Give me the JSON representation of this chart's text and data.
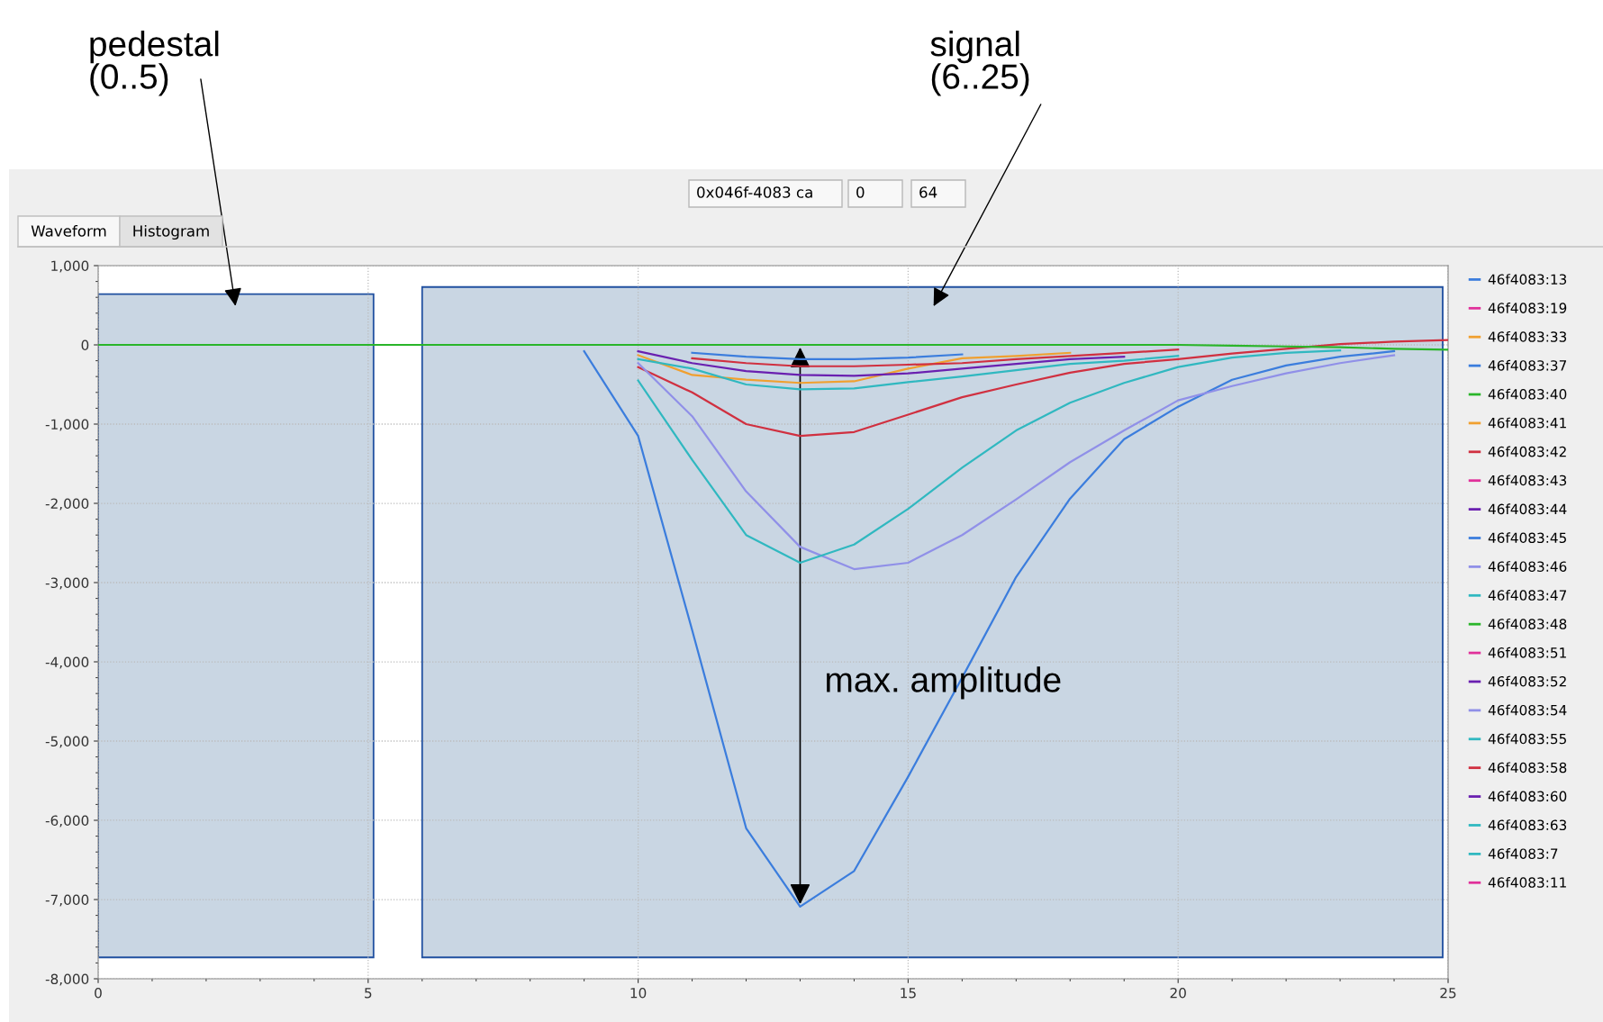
{
  "chart_data": {
    "type": "line",
    "x": [
      0,
      1,
      2,
      3,
      4,
      5,
      6,
      7,
      8,
      9,
      10,
      11,
      12,
      13,
      14,
      15,
      16,
      17,
      18,
      19,
      20,
      21,
      22,
      23,
      24,
      25
    ],
    "series": [
      {
        "name": "46f4083:13",
        "color": "#3b7ddd",
        "values": [
          null,
          null,
          null,
          null,
          null,
          null,
          null,
          null,
          null,
          null,
          null,
          null,
          null,
          null,
          null,
          null,
          null,
          null,
          null,
          null,
          null,
          null,
          null,
          null,
          null,
          null
        ]
      },
      {
        "name": "46f4083:19",
        "color": "#e0309a",
        "values": [
          null,
          null,
          null,
          null,
          null,
          null,
          null,
          null,
          null,
          null,
          null,
          null,
          null,
          null,
          null,
          null,
          null,
          null,
          null,
          null,
          null,
          null,
          null,
          null,
          null,
          null
        ]
      },
      {
        "name": "46f4083:33",
        "color": "#f0a030",
        "values": [
          null,
          null,
          null,
          null,
          null,
          null,
          null,
          null,
          null,
          null,
          null,
          null,
          null,
          null,
          null,
          null,
          null,
          null,
          null,
          null,
          null,
          null,
          null,
          null,
          null,
          null
        ]
      },
      {
        "name": "46f4083:37",
        "color": "#3b7ddd",
        "values": [
          null,
          null,
          null,
          null,
          null,
          null,
          null,
          null,
          null,
          null,
          null,
          -100,
          -150,
          -180,
          -180,
          -160,
          -120,
          null,
          null,
          null,
          null,
          null,
          null,
          null,
          null,
          null
        ]
      },
      {
        "name": "46f4083:40",
        "color": "#2ab52a",
        "values": [
          null,
          null,
          null,
          null,
          null,
          null,
          null,
          null,
          null,
          null,
          null,
          null,
          null,
          null,
          null,
          null,
          null,
          null,
          null,
          null,
          null,
          null,
          null,
          null,
          null,
          null
        ]
      },
      {
        "name": "46f4083:41",
        "color": "#f0a030",
        "values": [
          null,
          null,
          null,
          null,
          null,
          null,
          null,
          null,
          null,
          null,
          -130,
          -380,
          -440,
          -480,
          -460,
          -300,
          -170,
          -140,
          -100,
          null,
          null,
          null,
          null,
          null,
          null,
          null
        ]
      },
      {
        "name": "46f4083:42",
        "color": "#d03040",
        "values": [
          null,
          null,
          null,
          null,
          null,
          null,
          null,
          null,
          null,
          null,
          -280,
          -600,
          -1000,
          -1150,
          -1100,
          -880,
          -660,
          -500,
          -350,
          -240,
          -180,
          -110,
          -50,
          10,
          40,
          60
        ]
      },
      {
        "name": "46f4083:43",
        "color": "#e0309a",
        "values": [
          null,
          null,
          null,
          null,
          null,
          null,
          null,
          null,
          null,
          null,
          null,
          null,
          null,
          null,
          null,
          null,
          null,
          null,
          null,
          null,
          null,
          null,
          null,
          null,
          null,
          null
        ]
      },
      {
        "name": "46f4083:44",
        "color": "#6a20b0",
        "values": [
          null,
          null,
          null,
          null,
          null,
          null,
          null,
          null,
          null,
          null,
          -80,
          -230,
          -330,
          -380,
          -390,
          -360,
          -300,
          -240,
          -180,
          -150,
          null,
          null,
          null,
          null,
          null,
          null
        ]
      },
      {
        "name": "46f4083:45",
        "color": "#3b7ddd",
        "values": [
          null,
          null,
          null,
          null,
          null,
          null,
          null,
          null,
          null,
          -80,
          -1150,
          -3600,
          -6100,
          -7090,
          -6640,
          -5450,
          -4200,
          -2930,
          -1940,
          -1190,
          -780,
          -440,
          -260,
          -150,
          -80,
          null
        ]
      },
      {
        "name": "46f4083:46",
        "color": "#9090e8",
        "values": [
          null,
          null,
          null,
          null,
          null,
          null,
          null,
          null,
          null,
          null,
          -230,
          -900,
          -1850,
          -2550,
          -2830,
          -2750,
          -2400,
          -1950,
          -1480,
          -1080,
          -700,
          -520,
          -360,
          -230,
          -130,
          null
        ]
      },
      {
        "name": "46f4083:47",
        "color": "#30b8c0",
        "values": [
          null,
          null,
          null,
          null,
          null,
          null,
          null,
          null,
          null,
          null,
          -450,
          -1450,
          -2400,
          -2750,
          -2520,
          -2070,
          -1550,
          -1080,
          -730,
          -480,
          -280,
          -160,
          -100,
          -70,
          null,
          null
        ]
      },
      {
        "name": "46f4083:48",
        "color": "#2ab52a",
        "values": [
          0,
          0,
          0,
          0,
          0,
          0,
          0,
          0,
          0,
          0,
          0,
          0,
          0,
          0,
          0,
          0,
          0,
          0,
          0,
          0,
          0,
          -10,
          -20,
          -30,
          -50,
          -60
        ]
      },
      {
        "name": "46f4083:51",
        "color": "#e0309a",
        "values": [
          null,
          null,
          null,
          null,
          null,
          null,
          null,
          null,
          null,
          null,
          null,
          null,
          null,
          null,
          null,
          null,
          null,
          null,
          null,
          null,
          null,
          null,
          null,
          null,
          null,
          null
        ]
      },
      {
        "name": "46f4083:52",
        "color": "#6a20b0",
        "values": [
          null,
          null,
          null,
          null,
          null,
          null,
          null,
          null,
          null,
          null,
          null,
          null,
          null,
          null,
          null,
          null,
          null,
          null,
          null,
          null,
          null,
          null,
          null,
          null,
          null,
          null
        ]
      },
      {
        "name": "46f4083:54",
        "color": "#9090e8",
        "values": [
          null,
          null,
          null,
          null,
          null,
          null,
          null,
          null,
          null,
          null,
          null,
          null,
          null,
          null,
          null,
          null,
          null,
          null,
          null,
          null,
          null,
          null,
          null,
          null,
          null,
          null
        ]
      },
      {
        "name": "46f4083:55",
        "color": "#30b8c0",
        "values": [
          null,
          null,
          null,
          null,
          null,
          null,
          null,
          null,
          null,
          null,
          -180,
          -300,
          -500,
          -560,
          -550,
          -470,
          -400,
          -320,
          -240,
          -200,
          -140,
          null,
          null,
          null,
          null,
          null
        ]
      },
      {
        "name": "46f4083:58",
        "color": "#d03040",
        "values": [
          null,
          null,
          null,
          null,
          null,
          null,
          null,
          null,
          null,
          null,
          null,
          -170,
          -230,
          -270,
          -270,
          -250,
          -230,
          -180,
          -140,
          -100,
          -60,
          null,
          null,
          null,
          null,
          null
        ]
      },
      {
        "name": "46f4083:60",
        "color": "#6a20b0",
        "values": [
          null,
          null,
          null,
          null,
          null,
          null,
          null,
          null,
          null,
          null,
          null,
          null,
          null,
          null,
          null,
          null,
          null,
          null,
          null,
          null,
          null,
          null,
          null,
          null,
          null,
          null
        ]
      },
      {
        "name": "46f4083:63",
        "color": "#30b8c0",
        "values": [
          null,
          null,
          null,
          null,
          null,
          null,
          null,
          null,
          null,
          null,
          null,
          null,
          null,
          null,
          null,
          null,
          null,
          null,
          null,
          null,
          null,
          null,
          null,
          null,
          null,
          null
        ]
      },
      {
        "name": "46f4083:7",
        "color": "#30b8c0",
        "values": [
          null,
          null,
          null,
          null,
          null,
          null,
          null,
          null,
          null,
          null,
          null,
          null,
          null,
          null,
          null,
          null,
          null,
          null,
          null,
          null,
          null,
          null,
          null,
          null,
          null,
          null
        ]
      },
      {
        "name": "46f4083:11",
        "color": "#e0309a",
        "values": [
          null,
          null,
          null,
          null,
          null,
          null,
          null,
          null,
          null,
          null,
          null,
          null,
          null,
          null,
          null,
          null,
          null,
          null,
          null,
          null,
          null,
          null,
          null,
          null,
          null,
          null
        ]
      }
    ],
    "xlim": [
      0,
      25
    ],
    "xticks": [
      0,
      5,
      10,
      15,
      20,
      25
    ],
    "ylim": [
      -8000,
      1000
    ],
    "yticks": [
      {
        "value": -8000,
        "label": "-8,000"
      },
      {
        "value": -7000,
        "label": "-7,000"
      },
      {
        "value": -6000,
        "label": "-6,000"
      },
      {
        "value": -5000,
        "label": "-5,000"
      },
      {
        "value": -4000,
        "label": "-4,000"
      },
      {
        "value": -3000,
        "label": "-3,000"
      },
      {
        "value": -2000,
        "label": "-2,000"
      },
      {
        "value": -1000,
        "label": "-1,000"
      },
      0,
      {
        "value": 1000,
        "label": "1,000"
      }
    ],
    "grid": true,
    "legend": "right",
    "marker": "none",
    "line_style": "solid",
    "bands": [
      {
        "axis": "x",
        "from": 0,
        "to": 5.1,
        "label": "pedestal\n(0..5)",
        "color": "#c9d6e3"
      },
      {
        "axis": "x",
        "from": 6,
        "to": 24.9,
        "label": "signal\n(6..25)",
        "color": "#c9d6e3"
      }
    ],
    "annotations": [
      "max. amplitude",
      "Waveform",
      "Histogram",
      "0x046f-4083 ca",
      "0",
      "64"
    ]
  }
}
